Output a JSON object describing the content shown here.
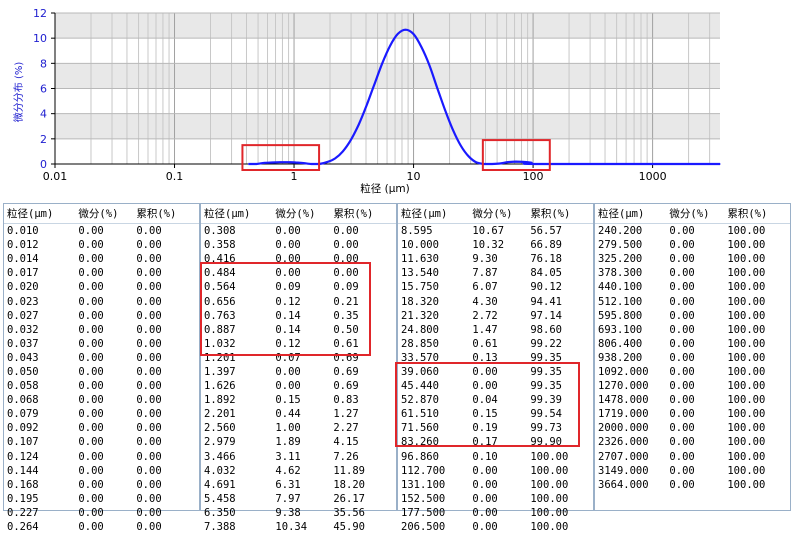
{
  "chart_data": {
    "type": "line",
    "xlabel": "粒径 (μm)",
    "ylabel": "微分分布 (%)",
    "x_scale": "log",
    "xlim": [
      0.01,
      3664
    ],
    "ylim": [
      0,
      12
    ],
    "x_ticks": [
      "0.01",
      "0.1",
      "1",
      "10",
      "100",
      "1000"
    ],
    "y_ticks": [
      "0",
      "2",
      "4",
      "6",
      "8",
      "10",
      "12"
    ],
    "grid": true,
    "series": [
      {
        "color": "#1a1aff",
        "points": [
          [
            0.416,
            0.0
          ],
          [
            0.484,
            0.0
          ],
          [
            0.564,
            0.09
          ],
          [
            0.656,
            0.12
          ],
          [
            0.763,
            0.14
          ],
          [
            0.887,
            0.14
          ],
          [
            1.032,
            0.12
          ],
          [
            1.201,
            0.07
          ],
          [
            1.397,
            0.0
          ],
          [
            1.626,
            0.0
          ],
          [
            1.892,
            0.15
          ],
          [
            2.201,
            0.44
          ],
          [
            2.56,
            1.0
          ],
          [
            2.979,
            1.89
          ],
          [
            3.466,
            3.11
          ],
          [
            4.032,
            4.62
          ],
          [
            4.691,
            6.31
          ],
          [
            5.458,
            7.97
          ],
          [
            6.35,
            9.38
          ],
          [
            7.388,
            10.34
          ],
          [
            8.595,
            10.67
          ],
          [
            10.0,
            10.32
          ],
          [
            11.63,
            9.3
          ],
          [
            13.54,
            7.87
          ],
          [
            15.75,
            6.07
          ],
          [
            18.32,
            4.3
          ],
          [
            21.32,
            2.72
          ],
          [
            24.8,
            1.47
          ],
          [
            28.85,
            0.61
          ],
          [
            33.57,
            0.13
          ],
          [
            39.06,
            0.0
          ],
          [
            45.44,
            0.0
          ],
          [
            52.87,
            0.04
          ],
          [
            61.51,
            0.15
          ],
          [
            71.56,
            0.19
          ],
          [
            83.26,
            0.17
          ],
          [
            96.86,
            0.1
          ],
          [
            112.7,
            0.0
          ],
          [
            3664.0,
            0.0
          ]
        ]
      }
    ],
    "highlight_color": "#e0262a"
  },
  "table": {
    "headers": [
      "粒径(μm)",
      "微分(%)",
      "累积(%)"
    ],
    "columns": [
      [
        [
          "0.010",
          "0.00",
          "0.00"
        ],
        [
          "0.012",
          "0.00",
          "0.00"
        ],
        [
          "0.014",
          "0.00",
          "0.00"
        ],
        [
          "0.017",
          "0.00",
          "0.00"
        ],
        [
          "0.020",
          "0.00",
          "0.00"
        ],
        [
          "0.023",
          "0.00",
          "0.00"
        ],
        [
          "0.027",
          "0.00",
          "0.00"
        ],
        [
          "0.032",
          "0.00",
          "0.00"
        ],
        [
          "0.037",
          "0.00",
          "0.00"
        ],
        [
          "0.043",
          "0.00",
          "0.00"
        ],
        [
          "0.050",
          "0.00",
          "0.00"
        ],
        [
          "0.058",
          "0.00",
          "0.00"
        ],
        [
          "0.068",
          "0.00",
          "0.00"
        ],
        [
          "0.079",
          "0.00",
          "0.00"
        ],
        [
          "0.092",
          "0.00",
          "0.00"
        ],
        [
          "0.107",
          "0.00",
          "0.00"
        ],
        [
          "0.124",
          "0.00",
          "0.00"
        ],
        [
          "0.144",
          "0.00",
          "0.00"
        ],
        [
          "0.168",
          "0.00",
          "0.00"
        ],
        [
          "0.195",
          "0.00",
          "0.00"
        ],
        [
          "0.227",
          "0.00",
          "0.00"
        ],
        [
          "0.264",
          "0.00",
          "0.00"
        ]
      ],
      [
        [
          "0.308",
          "0.00",
          "0.00"
        ],
        [
          "0.358",
          "0.00",
          "0.00"
        ],
        [
          "0.416",
          "0.00",
          "0.00"
        ],
        [
          "0.484",
          "0.00",
          "0.00"
        ],
        [
          "0.564",
          "0.09",
          "0.09"
        ],
        [
          "0.656",
          "0.12",
          "0.21"
        ],
        [
          "0.763",
          "0.14",
          "0.35"
        ],
        [
          "0.887",
          "0.14",
          "0.50"
        ],
        [
          "1.032",
          "0.12",
          "0.61"
        ],
        [
          "1.201",
          "0.07",
          "0.69"
        ],
        [
          "1.397",
          "0.00",
          "0.69"
        ],
        [
          "1.626",
          "0.00",
          "0.69"
        ],
        [
          "1.892",
          "0.15",
          "0.83"
        ],
        [
          "2.201",
          "0.44",
          "1.27"
        ],
        [
          "2.560",
          "1.00",
          "2.27"
        ],
        [
          "2.979",
          "1.89",
          "4.15"
        ],
        [
          "3.466",
          "3.11",
          "7.26"
        ],
        [
          "4.032",
          "4.62",
          "11.89"
        ],
        [
          "4.691",
          "6.31",
          "18.20"
        ],
        [
          "5.458",
          "7.97",
          "26.17"
        ],
        [
          "6.350",
          "9.38",
          "35.56"
        ],
        [
          "7.388",
          "10.34",
          "45.90"
        ]
      ],
      [
        [
          "8.595",
          "10.67",
          "56.57"
        ],
        [
          "10.000",
          "10.32",
          "66.89"
        ],
        [
          "11.630",
          "9.30",
          "76.18"
        ],
        [
          "13.540",
          "7.87",
          "84.05"
        ],
        [
          "15.750",
          "6.07",
          "90.12"
        ],
        [
          "18.320",
          "4.30",
          "94.41"
        ],
        [
          "21.320",
          "2.72",
          "97.14"
        ],
        [
          "24.800",
          "1.47",
          "98.60"
        ],
        [
          "28.850",
          "0.61",
          "99.22"
        ],
        [
          "33.570",
          "0.13",
          "99.35"
        ],
        [
          "39.060",
          "0.00",
          "99.35"
        ],
        [
          "45.440",
          "0.00",
          "99.35"
        ],
        [
          "52.870",
          "0.04",
          "99.39"
        ],
        [
          "61.510",
          "0.15",
          "99.54"
        ],
        [
          "71.560",
          "0.19",
          "99.73"
        ],
        [
          "83.260",
          "0.17",
          "99.90"
        ],
        [
          "96.860",
          "0.10",
          "100.00"
        ],
        [
          "112.700",
          "0.00",
          "100.00"
        ],
        [
          "131.100",
          "0.00",
          "100.00"
        ],
        [
          "152.500",
          "0.00",
          "100.00"
        ],
        [
          "177.500",
          "0.00",
          "100.00"
        ],
        [
          "206.500",
          "0.00",
          "100.00"
        ]
      ],
      [
        [
          "240.200",
          "0.00",
          "100.00"
        ],
        [
          "279.500",
          "0.00",
          "100.00"
        ],
        [
          "325.200",
          "0.00",
          "100.00"
        ],
        [
          "378.300",
          "0.00",
          "100.00"
        ],
        [
          "440.100",
          "0.00",
          "100.00"
        ],
        [
          "512.100",
          "0.00",
          "100.00"
        ],
        [
          "595.800",
          "0.00",
          "100.00"
        ],
        [
          "693.100",
          "0.00",
          "100.00"
        ],
        [
          "806.400",
          "0.00",
          "100.00"
        ],
        [
          "938.200",
          "0.00",
          "100.00"
        ],
        [
          "1092.000",
          "0.00",
          "100.00"
        ],
        [
          "1270.000",
          "0.00",
          "100.00"
        ],
        [
          "1478.000",
          "0.00",
          "100.00"
        ],
        [
          "1719.000",
          "0.00",
          "100.00"
        ],
        [
          "2000.000",
          "0.00",
          "100.00"
        ],
        [
          "2326.000",
          "0.00",
          "100.00"
        ],
        [
          "2707.000",
          "0.00",
          "100.00"
        ],
        [
          "3149.000",
          "0.00",
          "100.00"
        ],
        [
          "3664.000",
          "0.00",
          "100.00"
        ]
      ]
    ]
  }
}
